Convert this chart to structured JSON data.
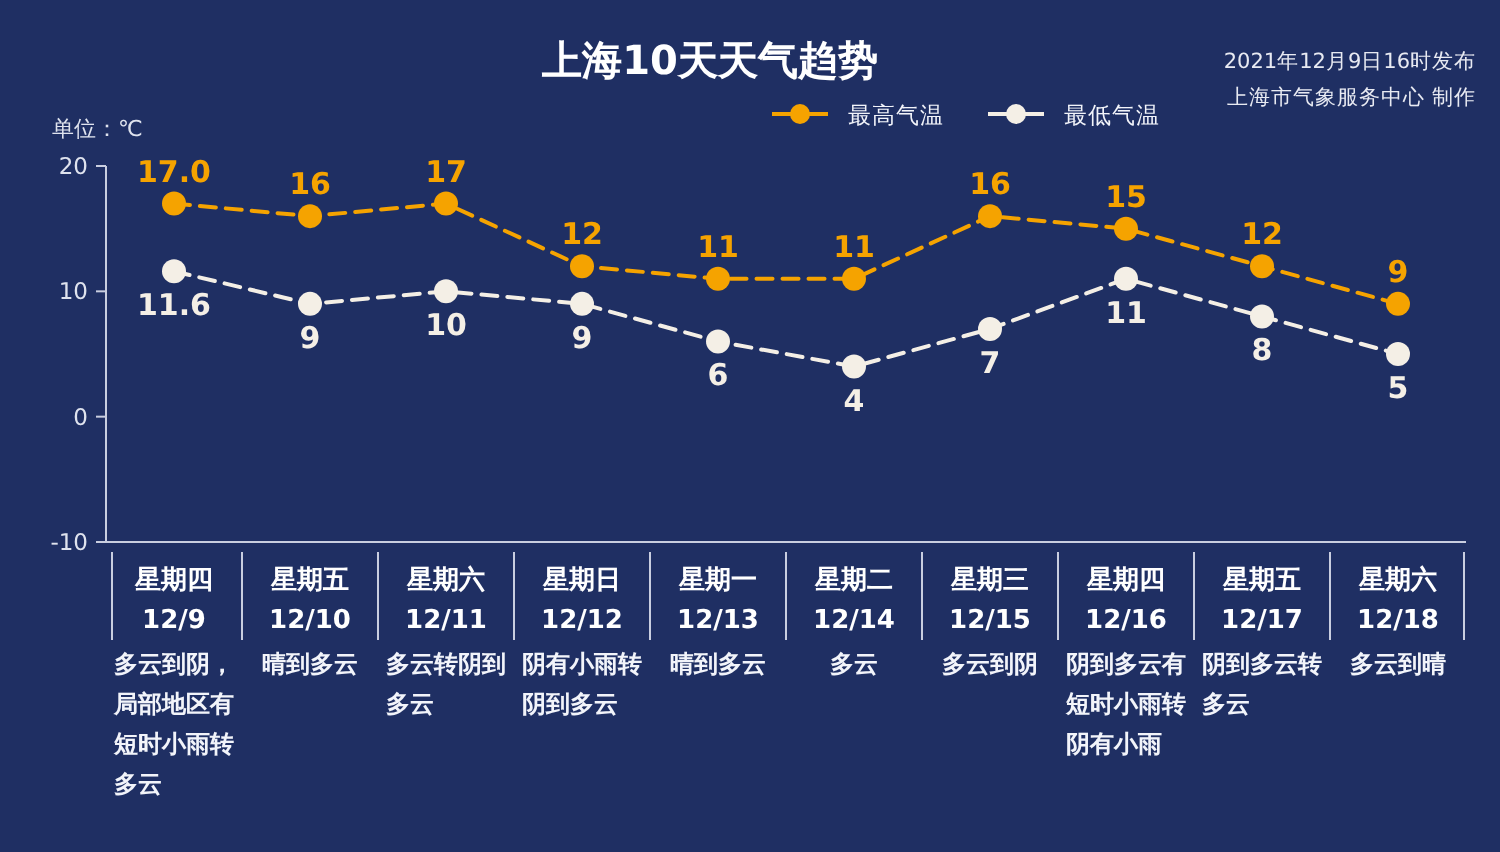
{
  "chart_data": {
    "type": "line",
    "title": "上海10天天气趋势",
    "subtitle": "2021年12月9日16时发布",
    "ylabel": "单位：℃",
    "categories": [
      "星期四 12/9",
      "星期五 12/10",
      "星期六 12/11",
      "星期日 12/12",
      "星期一 12/13",
      "星期二 12/14",
      "星期三 12/15",
      "星期四 12/16",
      "星期五 12/17",
      "星期六 12/18"
    ],
    "series": [
      {
        "name": "最高气温",
        "color": "#f5a300",
        "values": [
          17,
          16,
          17,
          12,
          11,
          11,
          16,
          15,
          12,
          9
        ],
        "value_labels": [
          "17.0",
          "16",
          "17",
          "12",
          "11",
          "11",
          "16",
          "15",
          "12",
          "9"
        ]
      },
      {
        "name": "最低气温",
        "color": "#f4efe6",
        "values": [
          11.6,
          9,
          10,
          9,
          6,
          4,
          7,
          11,
          8,
          5
        ],
        "value_labels": [
          "11.6",
          "9",
          "10",
          "9",
          "6",
          "4",
          "7",
          "11",
          "8",
          "5"
        ]
      }
    ],
    "ylim": [
      -10,
      20
    ],
    "yticks": [
      -10,
      0,
      10,
      20
    ],
    "marker": "circle",
    "line_style": "dashed",
    "legend": "top",
    "annotations": [
      "上海市气象服务中心 制作",
      "多云到阴，局部地区有短时小雨转多云",
      "晴到多云",
      "多云转阴到多云",
      "阴有小雨转阴到多云",
      "晴到多云",
      "多云",
      "多云到阴",
      "阴到多云有短时小雨转阴有小雨",
      "阴到多云转多云",
      "多云到晴"
    ]
  }
}
